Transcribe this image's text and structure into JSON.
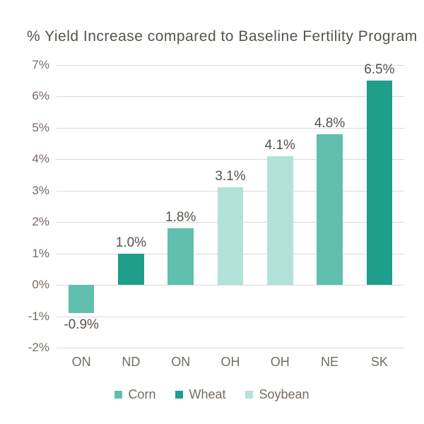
{
  "chart": {
    "type": "bar",
    "title": "% Yield Increase compared to Baseline Fertility Program",
    "title_fontsize": 21,
    "title_color": "#59514c",
    "background_color": "#ffffff",
    "axis_color": "#d9d9d9",
    "grid_color": "#d9d9d9",
    "tick_color": "#756a63",
    "tick_fontsize": 17,
    "xtick_fontsize": 18,
    "label_fontsize": 19,
    "label_color": "#59514c",
    "ylim_min": -2,
    "ylim_max": 7,
    "ytick_step": 1,
    "y_suffix": "%",
    "bar_width_ratio": 0.52,
    "series_colors": {
      "Corn": "#60bfad",
      "Wheat": "#1e9e8b",
      "Soybean": "#b2e3d8"
    },
    "legend": [
      {
        "label": "Corn",
        "key": "Corn"
      },
      {
        "label": "Wheat",
        "key": "Wheat"
      },
      {
        "label": "Soybean",
        "key": "Soybean"
      }
    ],
    "bars": [
      {
        "category": "ON",
        "value": -0.9,
        "label": "-0.9%",
        "series": "Corn"
      },
      {
        "category": "ND",
        "value": 1.0,
        "label": "1.0%",
        "series": "Wheat"
      },
      {
        "category": "ON",
        "value": 1.8,
        "label": "1.8%",
        "series": "Corn"
      },
      {
        "category": "OH",
        "value": 3.1,
        "label": "3.1%",
        "series": "Soybean"
      },
      {
        "category": "OH",
        "value": 4.1,
        "label": "4.1%",
        "series": "Soybean"
      },
      {
        "category": "NE",
        "value": 4.8,
        "label": "4.8%",
        "series": "Corn"
      },
      {
        "category": "SK",
        "value": 6.5,
        "label": "6.5%",
        "series": "Wheat"
      }
    ]
  }
}
